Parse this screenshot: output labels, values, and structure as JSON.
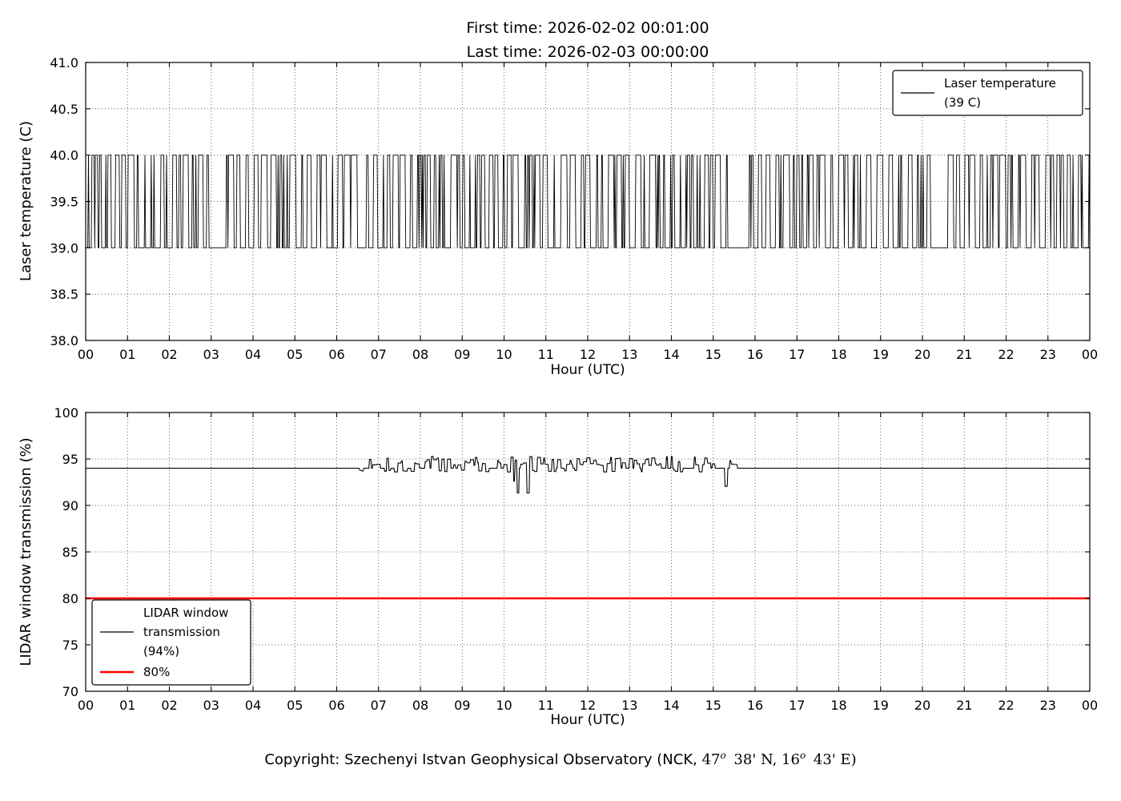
{
  "figure": {
    "title_line1": "First time: 2026-02-02 00:01:00",
    "title_line2": "Last time: 2026-02-03 00:00:00",
    "footer": {
      "prefix": "Copyright: Szechenyi Istvan Geophysical Observatory (NCK, ",
      "lat_deg": "47",
      "lat_deg_symbol": "o",
      "lat_rest": " 38' N, ",
      "lon_deg": "16",
      "lon_deg_symbol": "o",
      "lon_rest": " 43' E)"
    },
    "colors": {
      "line": "#000000",
      "threshold": "#ff0000",
      "background": "#ffffff"
    }
  },
  "chart_data": [
    {
      "type": "line",
      "title": "",
      "xlabel": "Hour (UTC)",
      "ylabel": "Laser temperature (C)",
      "xlim": [
        0,
        24
      ],
      "ylim": [
        38.0,
        41.0
      ],
      "xtick_labels": [
        "00",
        "01",
        "02",
        "03",
        "04",
        "05",
        "06",
        "07",
        "08",
        "09",
        "10",
        "11",
        "12",
        "13",
        "14",
        "15",
        "16",
        "17",
        "18",
        "19",
        "20",
        "21",
        "22",
        "23",
        "00"
      ],
      "ytick_values": [
        38.0,
        38.5,
        39.0,
        39.5,
        40.0,
        40.5,
        41.0
      ],
      "ytick_labels": [
        "38.0",
        "38.5",
        "39.0",
        "39.5",
        "40.0",
        "40.5",
        "41.0"
      ],
      "grid": true,
      "legend": {
        "position": "upper right",
        "entries": [
          {
            "lines": [
              "Laser temperature",
              "(39 C)"
            ],
            "color": "#000000",
            "line_width": 1.2
          }
        ]
      },
      "series": [
        {
          "name": "Laser temperature (39 C)",
          "color": "#000000",
          "stated_value_c": 39,
          "low_c": 39,
          "high_c": 40,
          "sample_interval_min": 1,
          "behavior": "1-minute samples randomly toggling between 39 C and 40 C across the full 24 h",
          "quiet_periods_hours": [
            [
              2.95,
              3.35
            ],
            [
              6.5,
              6.7
            ],
            [
              15.35,
              15.85
            ],
            [
              20.3,
              20.55
            ]
          ],
          "seed": 20260202
        }
      ]
    },
    {
      "type": "line",
      "title": "",
      "xlabel": "Hour (UTC)",
      "ylabel": "LIDAR window transmission (%)",
      "xlim": [
        0,
        24
      ],
      "ylim": [
        70,
        100
      ],
      "xtick_labels": [
        "00",
        "01",
        "02",
        "03",
        "04",
        "05",
        "06",
        "07",
        "08",
        "09",
        "10",
        "11",
        "12",
        "13",
        "14",
        "15",
        "16",
        "17",
        "18",
        "19",
        "20",
        "21",
        "22",
        "23",
        "00"
      ],
      "ytick_values": [
        70,
        75,
        80,
        85,
        90,
        95,
        100
      ],
      "ytick_labels": [
        "70",
        "75",
        "80",
        "85",
        "90",
        "95",
        "100"
      ],
      "grid": true,
      "legend": {
        "position": "lower left",
        "entries": [
          {
            "lines": [
              "LIDAR window",
              "transmission",
              "(94%)"
            ],
            "color": "#000000",
            "line_width": 1.2
          },
          {
            "lines": [
              "80%"
            ],
            "color": "#ff0000",
            "line_width": 2.5
          }
        ]
      },
      "series": [
        {
          "name": "LIDAR window transmission (94%)",
          "color": "#000000",
          "stated_value_pct": 94,
          "baseline_pct": 94,
          "active_hours": [
            6.55,
            15.62
          ],
          "active_typical_pct": [
            93.7,
            95.2
          ],
          "active_extremes_pct": [
            91.0,
            95.4
          ],
          "behavior": "flat at 94% except noisy measured values between ~06:33 and ~15:37 UTC",
          "seed": 20260203
        },
        {
          "name": "80% threshold",
          "color": "#ff0000",
          "constant_pct": 80
        }
      ]
    }
  ]
}
